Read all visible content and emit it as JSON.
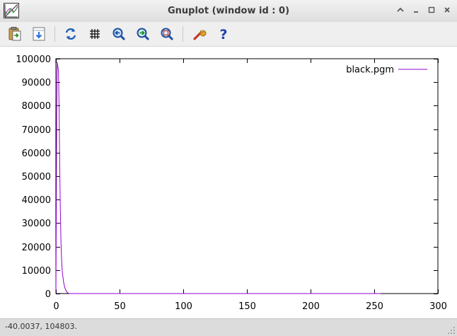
{
  "window": {
    "title": "Gnuplot (window id : 0)"
  },
  "icons": {
    "app": "gnuplot-app-icon",
    "toolbar": [
      "copy-to-clipboard-icon",
      "print-icon",
      "replot-icon",
      "grid-icon",
      "previous-zoom-icon",
      "next-zoom-icon",
      "autoscale-icon",
      "options-wrench-icon",
      "help-icon"
    ],
    "window_buttons": [
      "keep-above-icon",
      "minimize-icon",
      "maximize-icon",
      "close-icon"
    ]
  },
  "chart_data": {
    "type": "line",
    "title": "",
    "xlabel": "",
    "ylabel": "",
    "xlim": [
      0,
      300
    ],
    "ylim": [
      0,
      100000
    ],
    "xticks": [
      0,
      50,
      100,
      150,
      200,
      250,
      300
    ],
    "yticks": [
      0,
      10000,
      20000,
      30000,
      40000,
      50000,
      60000,
      70000,
      80000,
      90000,
      100000
    ],
    "grid": false,
    "legend_position": "top-right",
    "series": [
      {
        "name": "black.pgm",
        "color": "#9400d3",
        "x": [
          0,
          0.3,
          0.6,
          1,
          2,
          2.5,
          3,
          3.5,
          4,
          4.5,
          5,
          6,
          7,
          8,
          9,
          10,
          11,
          12,
          15,
          20,
          50,
          100,
          150,
          200,
          250,
          255
        ],
        "y": [
          0,
          30000,
          75000,
          98500,
          95000,
          80000,
          55000,
          35000,
          22000,
          14000,
          9500,
          5000,
          2500,
          1200,
          400,
          100,
          0,
          0,
          0,
          0,
          0,
          0,
          0,
          0,
          0,
          0
        ]
      }
    ]
  },
  "status": {
    "coords": "-40.0037,  104803."
  }
}
